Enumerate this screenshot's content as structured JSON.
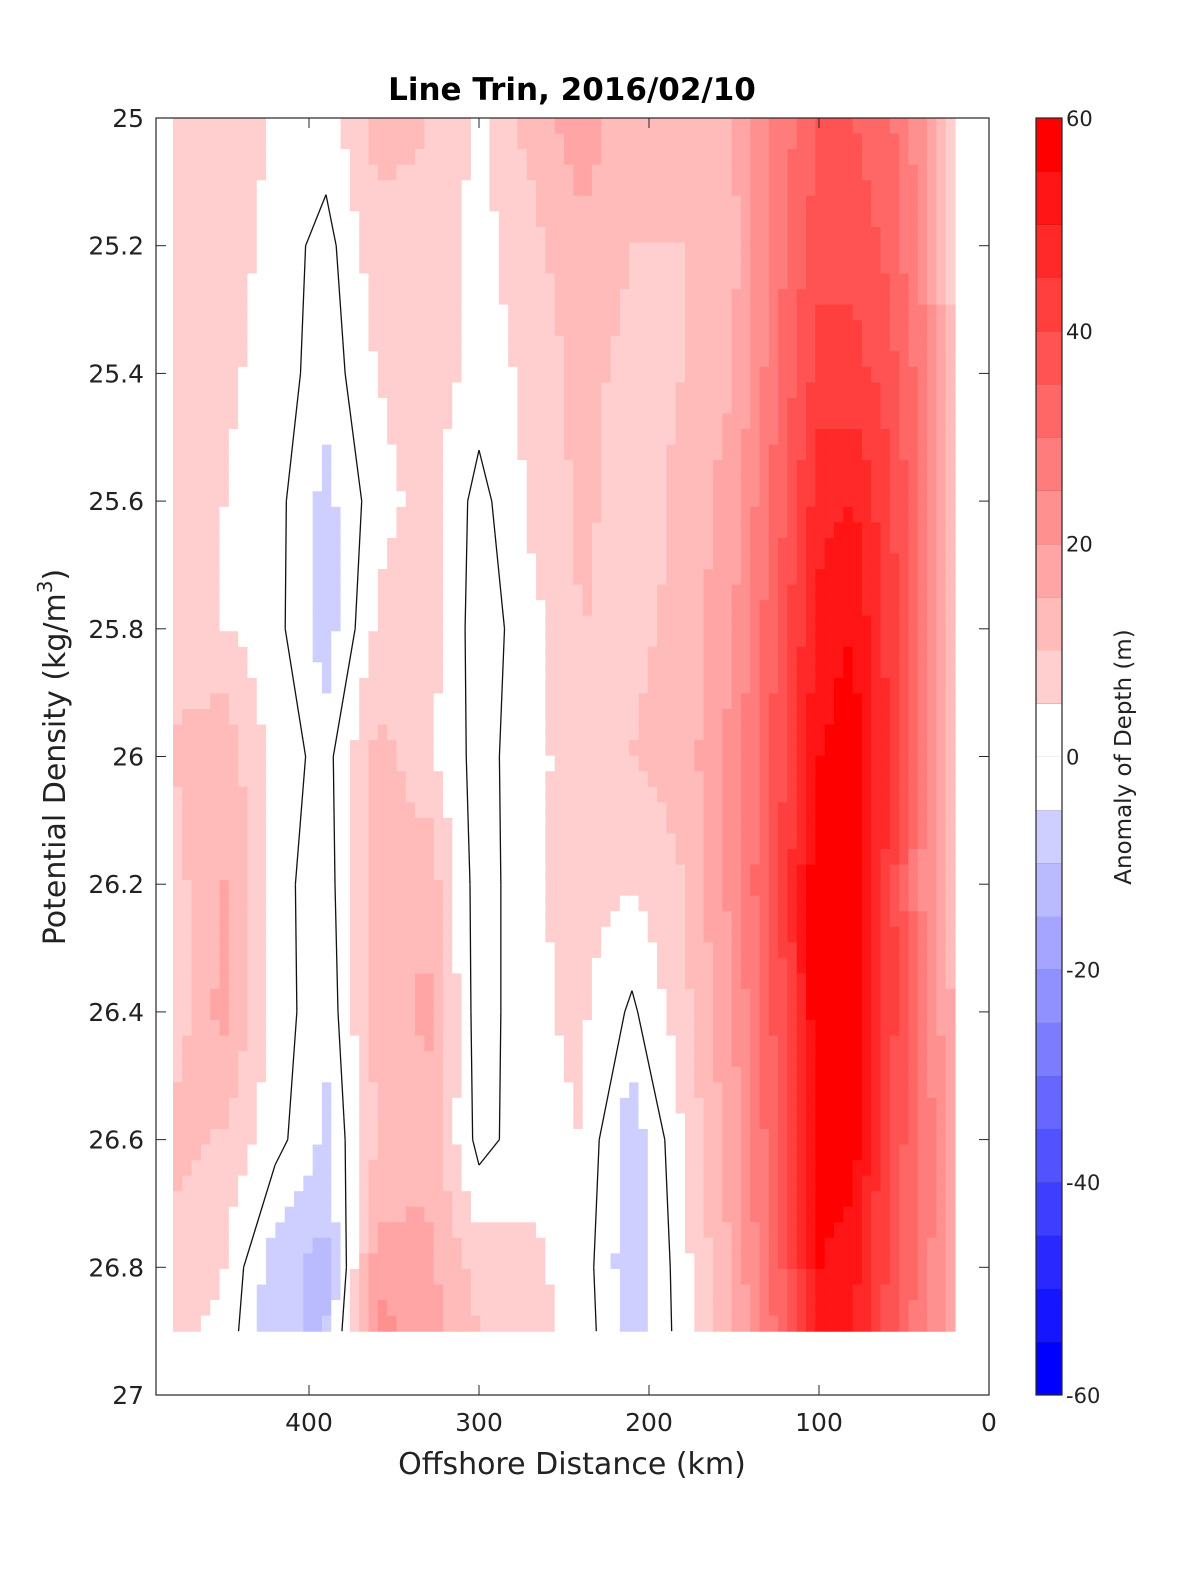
{
  "chart_data": {
    "type": "heatmap",
    "subtype": "filled-contour",
    "title": "Line Trin, 2016/02/10",
    "xlabel": "Offshore Distance (km)",
    "ylabel": "Potential Density (kg/m",
    "ylabel_sup": "3",
    "ylabel_close": ")",
    "colorbar_label": "Anomaly of Depth (m)",
    "xlim": [
      490,
      0
    ],
    "x_reversed": true,
    "ylim": [
      25,
      27
    ],
    "y_reversed": true,
    "xticks": [
      400,
      300,
      200,
      100,
      0
    ],
    "yticks": [
      "25",
      "25.2",
      "25.4",
      "25.6",
      "25.8",
      "26",
      "26.2",
      "26.4",
      "26.6",
      "26.8",
      "27"
    ],
    "yticks_values": [
      25,
      25.2,
      25.4,
      25.6,
      25.8,
      26,
      26.2,
      26.4,
      26.6,
      26.8,
      27
    ],
    "clim": [
      -60,
      60
    ],
    "colorbar_ticks": [
      60,
      40,
      20,
      0,
      -20,
      -40,
      -60
    ],
    "contour_levels": [
      -60,
      -55,
      -50,
      -45,
      -40,
      -35,
      -30,
      -25,
      -20,
      -15,
      -10,
      -5,
      0,
      5,
      10,
      15,
      20,
      25,
      30,
      35,
      40,
      45,
      50,
      55,
      60
    ],
    "data_valid_max_density": 26.9,
    "x": [
      480,
      450,
      420,
      390,
      360,
      330,
      300,
      270,
      240,
      210,
      180,
      150,
      120,
      100,
      80,
      60,
      40,
      20
    ],
    "y": [
      25.0,
      25.2,
      25.4,
      25.6,
      25.8,
      26.0,
      26.2,
      26.4,
      26.6,
      26.8,
      26.9
    ],
    "z": [
      [
        10,
        10,
        4,
        3,
        12,
        10,
        4,
        12,
        18,
        12,
        12,
        15,
        28,
        35,
        35,
        32,
        22,
        6
      ],
      [
        9,
        8,
        3,
        -2,
        8,
        9,
        3,
        8,
        14,
        10,
        10,
        14,
        30,
        38,
        38,
        34,
        24,
        7
      ],
      [
        8,
        6,
        3,
        -3,
        5,
        8,
        3,
        6,
        12,
        8,
        10,
        15,
        32,
        42,
        42,
        38,
        28,
        8
      ],
      [
        8,
        5,
        2,
        -7,
        3,
        7,
        -2,
        6,
        11,
        8,
        11,
        18,
        35,
        48,
        50,
        42,
        30,
        9
      ],
      [
        9,
        5,
        2,
        -8,
        6,
        8,
        -3,
        3,
        10,
        9,
        11,
        20,
        38,
        52,
        55,
        44,
        30,
        9
      ],
      [
        10,
        14,
        3,
        -2,
        12,
        6,
        -2,
        3,
        8,
        10,
        12,
        22,
        40,
        55,
        58,
        45,
        28,
        8
      ],
      [
        8,
        15,
        2,
        -3,
        14,
        14,
        -3,
        4,
        7,
        5,
        10,
        22,
        42,
        60,
        58,
        44,
        25,
        10
      ],
      [
        7,
        17,
        3,
        -4,
        13,
        16,
        -3,
        4,
        6,
        -1,
        8,
        20,
        40,
        60,
        60,
        44,
        28,
        14
      ],
      [
        12,
        9,
        2,
        -6,
        10,
        14,
        -2,
        3,
        5,
        -9,
        5,
        18,
        38,
        58,
        58,
        40,
        30,
        16
      ],
      [
        8,
        5,
        -8,
        -12,
        18,
        16,
        8,
        6,
        3,
        -9,
        3,
        16,
        36,
        55,
        52,
        40,
        28,
        18
      ],
      [
        6,
        4,
        -10,
        -10,
        22,
        18,
        10,
        7,
        3,
        -7,
        2,
        14,
        34,
        50,
        50,
        38,
        26,
        16
      ]
    ]
  }
}
